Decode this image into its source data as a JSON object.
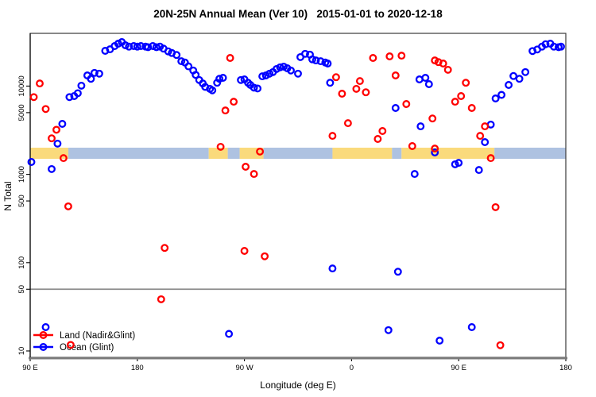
{
  "title": "20N-25N Annual Mean (Ver 10)   2015-01-01 to 2020-12-18",
  "chart_data": {
    "type": "scatter",
    "title": "20N-25N Annual Mean (Ver 10)   2015-01-01 to 2020-12-18",
    "x_axis": {
      "label": "Longitude (deg E)",
      "range_deg_from_90E": [
        0,
        450
      ],
      "ticks": [
        {
          "deg": 0,
          "label": "90 E"
        },
        {
          "deg": 90,
          "label": "180"
        },
        {
          "deg": 180,
          "label": "90 W"
        },
        {
          "deg": 270,
          "label": "0"
        },
        {
          "deg": 360,
          "label": "90 E"
        },
        {
          "deg": 450,
          "label": "180"
        }
      ]
    },
    "y_axis": {
      "label": "N Total",
      "scale": "log",
      "ticks": [
        "10",
        "50",
        "100",
        "500",
        "1000",
        "5000",
        "10000"
      ],
      "tick_values": [
        10,
        50,
        100,
        500,
        1000,
        5000,
        10000
      ],
      "range": [
        10,
        42000
      ]
    },
    "reference_line_y": 50,
    "grid": "off",
    "legend_position": "bottom-left",
    "legend": [
      {
        "label": "Land (Nadir&Glint)",
        "color": "#ff0000"
      },
      {
        "label": "Ocean (Glint)",
        "color": "#0000ff"
      }
    ],
    "surface_band": {
      "description": "land/ocean strip across all longitudes",
      "y_center_value": 1700,
      "land_color": "#fada7c",
      "ocean_color": "#aec2e1",
      "segments": [
        {
          "from": 0,
          "to": 32,
          "surface": "land"
        },
        {
          "from": 32,
          "to": 150,
          "surface": "ocean"
        },
        {
          "from": 150,
          "to": 166,
          "surface": "land"
        },
        {
          "from": 166,
          "to": 176,
          "surface": "ocean"
        },
        {
          "from": 176,
          "to": 196,
          "surface": "land"
        },
        {
          "from": 196,
          "to": 254,
          "surface": "ocean"
        },
        {
          "from": 254,
          "to": 304,
          "surface": "land"
        },
        {
          "from": 304,
          "to": 312,
          "surface": "ocean"
        },
        {
          "from": 312,
          "to": 390,
          "surface": "land"
        },
        {
          "from": 390,
          "to": 450,
          "surface": "ocean"
        }
      ]
    },
    "series": [
      {
        "name": "Land (Nadir&Glint)",
        "color": "#ff0000",
        "points": [
          [
            3,
            7500
          ],
          [
            8,
            10700
          ],
          [
            13,
            5500
          ],
          [
            18,
            2560
          ],
          [
            22,
            3200
          ],
          [
            28,
            1530
          ],
          [
            32,
            434
          ],
          [
            34,
            11.7
          ],
          [
            110,
            38.5
          ],
          [
            113,
            147
          ],
          [
            160,
            2050
          ],
          [
            164,
            5300
          ],
          [
            168,
            20800
          ],
          [
            171,
            6650
          ],
          [
            180,
            136
          ],
          [
            181,
            1220
          ],
          [
            188,
            1010
          ],
          [
            193,
            1810
          ],
          [
            197,
            118
          ],
          [
            254,
            2730
          ],
          [
            257,
            12600
          ],
          [
            262,
            8200
          ],
          [
            267,
            3800
          ],
          [
            274,
            9300
          ],
          [
            277,
            11400
          ],
          [
            282,
            8500
          ],
          [
            288,
            20800
          ],
          [
            292,
            2520
          ],
          [
            296,
            3100
          ],
          [
            302,
            21700
          ],
          [
            307,
            13200
          ],
          [
            312,
            22100
          ],
          [
            316,
            6260
          ],
          [
            321,
            2090
          ],
          [
            338,
            4300
          ],
          [
            340,
            19500
          ],
          [
            340,
            1960
          ],
          [
            343,
            18700
          ],
          [
            347,
            18000
          ],
          [
            351,
            15300
          ],
          [
            357,
            6650
          ],
          [
            362,
            7700
          ],
          [
            366,
            10900
          ],
          [
            371,
            5650
          ],
          [
            378,
            2730
          ],
          [
            382,
            3500
          ],
          [
            387,
            1530
          ],
          [
            391,
            425
          ],
          [
            395,
            11.6
          ]
        ]
      },
      {
        "name": "Ocean (Glint)",
        "color": "#0000ff",
        "points": [
          [
            1,
            1380
          ],
          [
            13,
            18.6
          ],
          [
            18,
            1150
          ],
          [
            23,
            2230
          ],
          [
            27,
            3730
          ],
          [
            33,
            7500
          ],
          [
            37,
            7700
          ],
          [
            40,
            8300
          ],
          [
            43,
            10100
          ],
          [
            48,
            13200
          ],
          [
            51,
            12100
          ],
          [
            54,
            14100
          ],
          [
            58,
            13800
          ],
          [
            63,
            25100
          ],
          [
            67,
            26100
          ],
          [
            71,
            28400
          ],
          [
            74,
            30200
          ],
          [
            77,
            31500
          ],
          [
            80,
            29000
          ],
          [
            83,
            28000
          ],
          [
            87,
            28400
          ],
          [
            90,
            28000
          ],
          [
            93,
            28400
          ],
          [
            97,
            28000
          ],
          [
            99,
            27600
          ],
          [
            103,
            28400
          ],
          [
            106,
            27600
          ],
          [
            109,
            28000
          ],
          [
            112,
            26600
          ],
          [
            116,
            24700
          ],
          [
            119,
            23700
          ],
          [
            123,
            22500
          ],
          [
            127,
            19100
          ],
          [
            130,
            18500
          ],
          [
            133,
            16700
          ],
          [
            137,
            15000
          ],
          [
            139,
            13400
          ],
          [
            142,
            11700
          ],
          [
            145,
            10700
          ],
          [
            147,
            9800
          ],
          [
            151,
            9300
          ],
          [
            153,
            8950
          ],
          [
            157,
            10900
          ],
          [
            159,
            12100
          ],
          [
            162,
            12400
          ],
          [
            167,
            15.6
          ],
          [
            177,
            11700
          ],
          [
            180,
            11900
          ],
          [
            183,
            10900
          ],
          [
            185,
            10300
          ],
          [
            188,
            9600
          ],
          [
            191,
            9400
          ],
          [
            195,
            12900
          ],
          [
            198,
            13200
          ],
          [
            201,
            13800
          ],
          [
            204,
            14400
          ],
          [
            207,
            15600
          ],
          [
            210,
            16300
          ],
          [
            213,
            16600
          ],
          [
            216,
            15900
          ],
          [
            219,
            15000
          ],
          [
            225,
            13800
          ],
          [
            227,
            21300
          ],
          [
            231,
            23200
          ],
          [
            235,
            22700
          ],
          [
            237,
            20100
          ],
          [
            240,
            19500
          ],
          [
            244,
            19100
          ],
          [
            248,
            18500
          ],
          [
            250,
            18000
          ],
          [
            252,
            10900
          ],
          [
            254,
            86
          ],
          [
            301,
            17.2
          ],
          [
            307,
            5650
          ],
          [
            309,
            79
          ],
          [
            323,
            1010
          ],
          [
            327,
            11900
          ],
          [
            328,
            3500
          ],
          [
            332,
            12400
          ],
          [
            335,
            10500
          ],
          [
            340,
            1770
          ],
          [
            344,
            13.1
          ],
          [
            357,
            1300
          ],
          [
            360,
            1350
          ],
          [
            371,
            18.6
          ],
          [
            377,
            1120
          ],
          [
            382,
            2320
          ],
          [
            387,
            3660
          ],
          [
            391,
            7240
          ],
          [
            396,
            7940
          ],
          [
            402,
            10300
          ],
          [
            406,
            13000
          ],
          [
            411,
            12100
          ],
          [
            416,
            14400
          ],
          [
            422,
            24900
          ],
          [
            426,
            26000
          ],
          [
            430,
            28000
          ],
          [
            433,
            29800
          ],
          [
            437,
            30200
          ],
          [
            440,
            28000
          ],
          [
            444,
            27600
          ],
          [
            446,
            28000
          ]
        ]
      }
    ]
  }
}
